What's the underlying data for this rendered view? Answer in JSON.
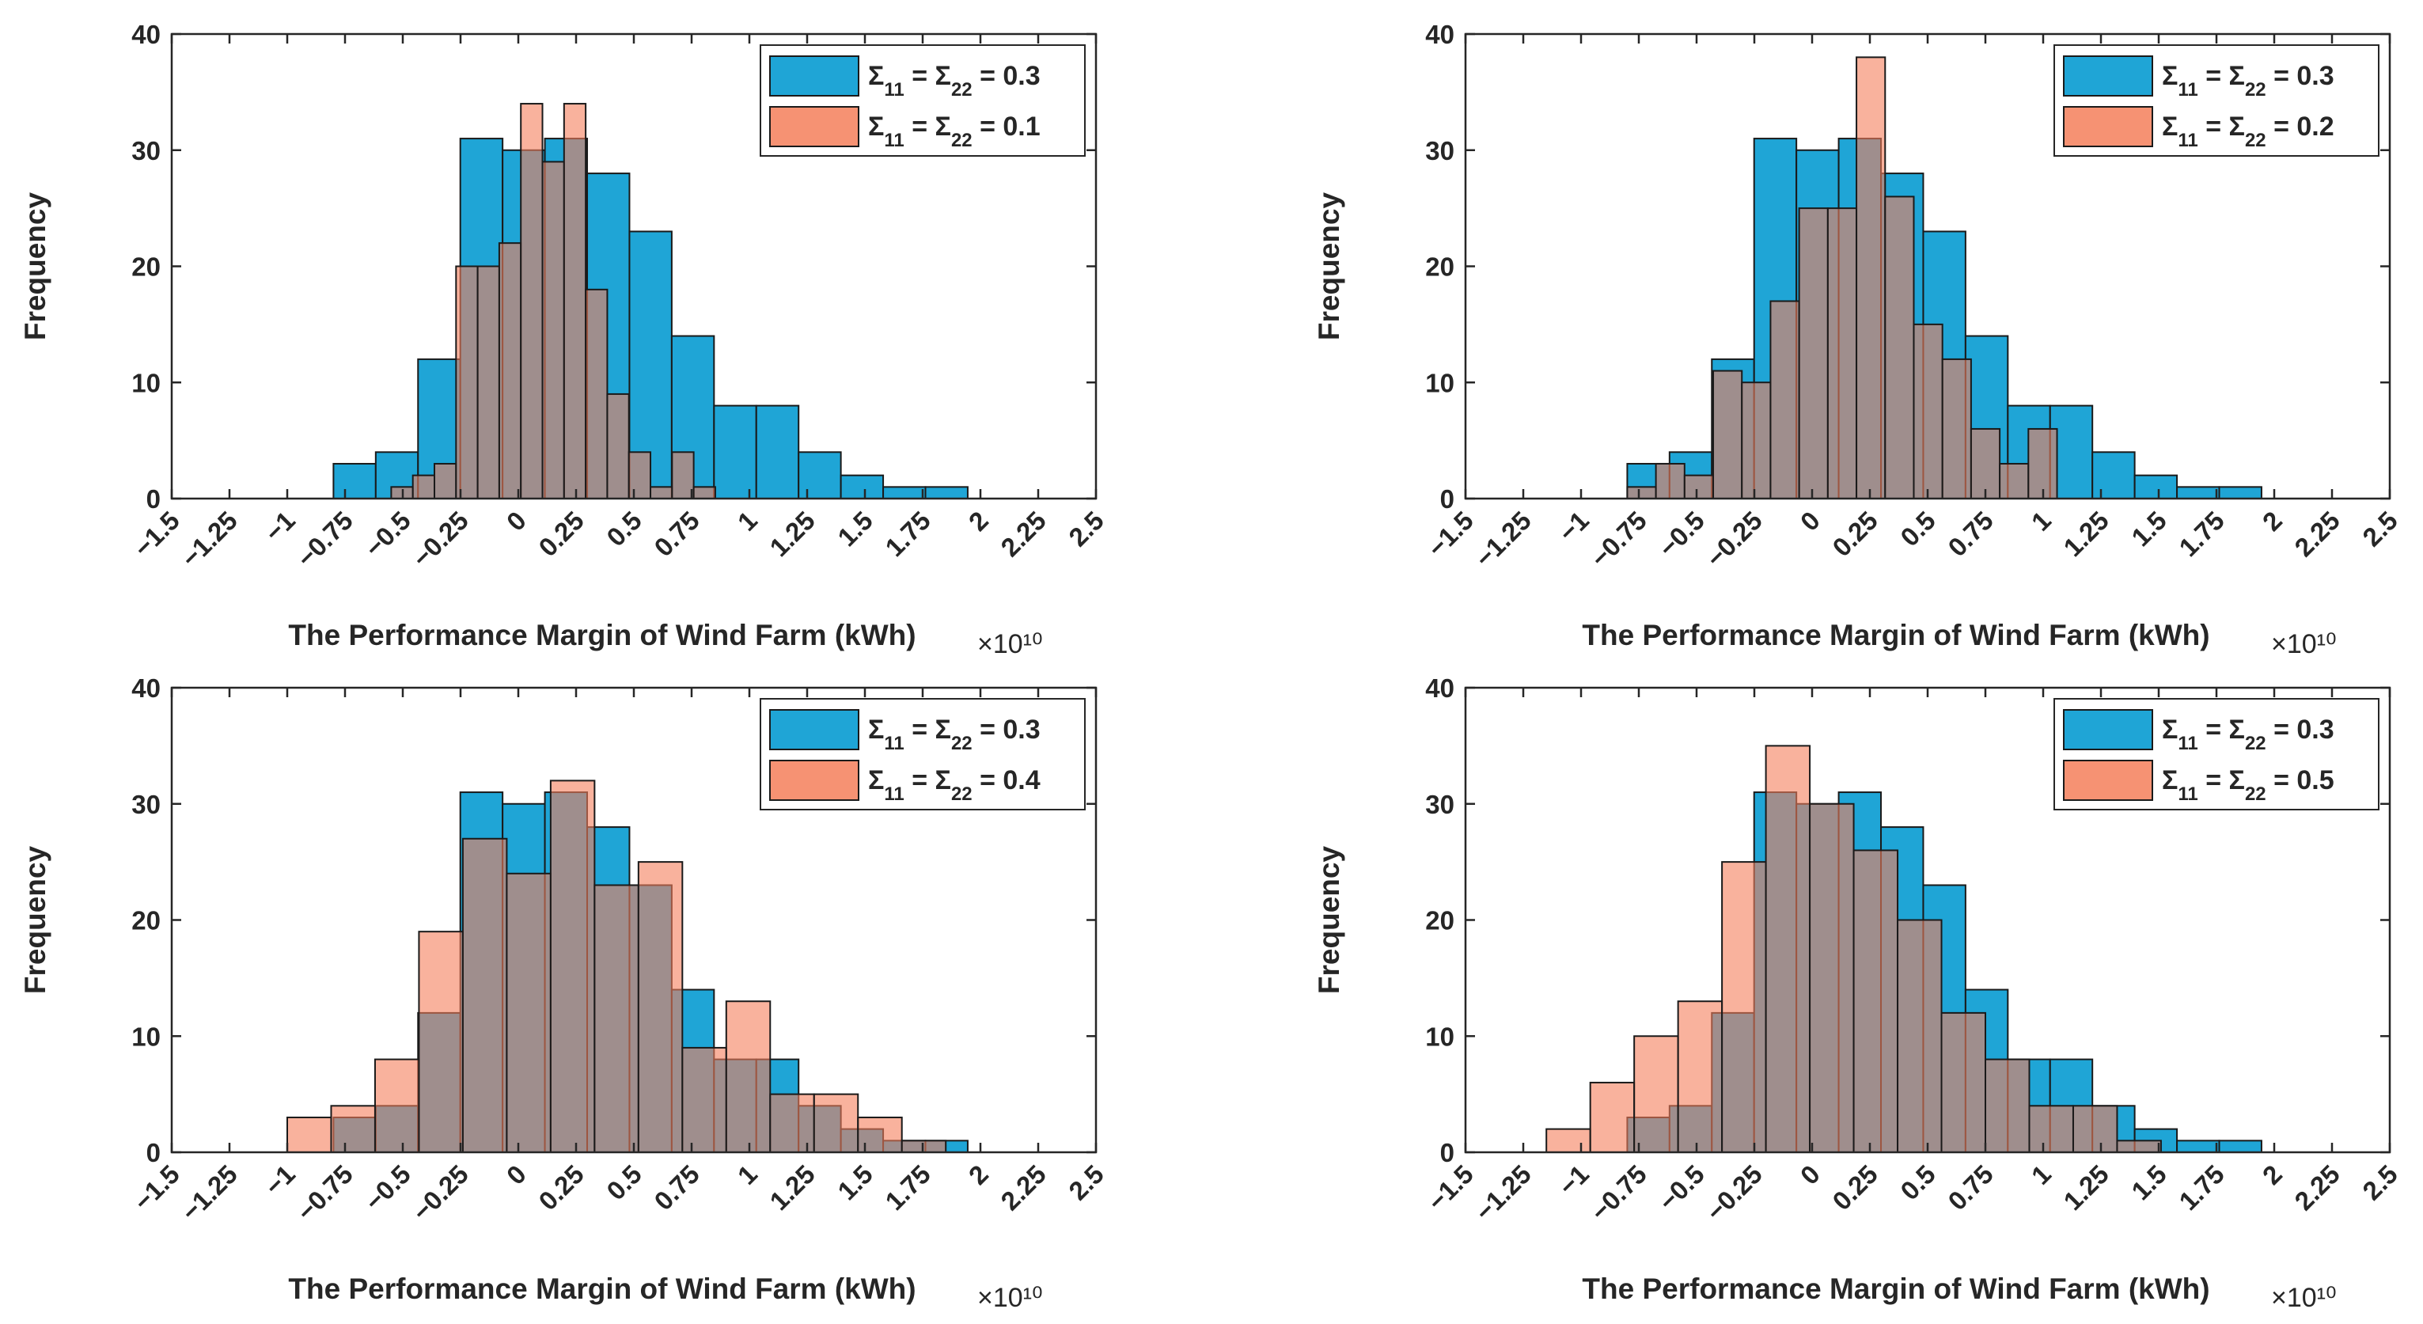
{
  "chart_data": [
    {
      "type": "bar",
      "xlabel": "The Performance Margin of Wind Farm (kWh)",
      "ylabel": "Frequency",
      "x_exponent": "×10¹⁰",
      "xlim": [
        -1.5,
        2.5
      ],
      "ylim": [
        0,
        40
      ],
      "xticks": [
        "−1.5",
        "−1.25",
        "−1",
        "−0.75",
        "−0.5",
        "−0.25",
        "0",
        "0.25",
        "0.5",
        "0.75",
        "1",
        "1.25",
        "1.5",
        "1.75",
        "2",
        "2.25",
        "2.5"
      ],
      "yticks": [
        "0",
        "10",
        "20",
        "30",
        "40"
      ],
      "legend_position": "top-right",
      "series": [
        {
          "name_parts": {
            "sym": "Σ",
            "sub1": "11",
            "eq": " = ",
            "sub2": "22",
            "val": " = 0.3"
          },
          "color": "#1FA5D6",
          "bin_start": -0.8,
          "bin_width": 0.183,
          "values": [
            3,
            4,
            12,
            31,
            30,
            31,
            28,
            23,
            14,
            8,
            8,
            4,
            2,
            1,
            1
          ]
        },
        {
          "name_parts": {
            "sym": "Σ",
            "sub1": "11",
            "eq": " = ",
            "sub2": "22",
            "val": " = 0.1"
          },
          "color": "#F57F5B",
          "bin_start": -0.55,
          "bin_width": 0.0935,
          "values": [
            1,
            2,
            3,
            20,
            20,
            22,
            34,
            29,
            34,
            18,
            9,
            4,
            1,
            4,
            1
          ]
        }
      ]
    },
    {
      "type": "bar",
      "xlabel": "The Performance Margin of Wind Farm (kWh)",
      "ylabel": "Frequency",
      "x_exponent": "×10¹⁰",
      "xlim": [
        -1.5,
        2.5
      ],
      "ylim": [
        0,
        40
      ],
      "xticks": [
        "−1.5",
        "−1.25",
        "−1",
        "−0.75",
        "−0.5",
        "−0.25",
        "0",
        "0.25",
        "0.5",
        "0.75",
        "1",
        "1.25",
        "1.5",
        "1.75",
        "2",
        "2.25",
        "2.5"
      ],
      "yticks": [
        "0",
        "10",
        "20",
        "30",
        "40"
      ],
      "legend_position": "top-right",
      "series": [
        {
          "name_parts": {
            "sym": "Σ",
            "sub1": "11",
            "eq": " = ",
            "sub2": "22",
            "val": " = 0.3"
          },
          "color": "#1FA5D6",
          "bin_start": -0.8,
          "bin_width": 0.183,
          "values": [
            3,
            4,
            12,
            31,
            30,
            31,
            28,
            23,
            14,
            8,
            8,
            4,
            2,
            1,
            1
          ]
        },
        {
          "name_parts": {
            "sym": "Σ",
            "sub1": "11",
            "eq": " = ",
            "sub2": "22",
            "val": " = 0.2"
          },
          "color": "#F57F5B",
          "bin_start": -0.8,
          "bin_width": 0.124,
          "values": [
            1,
            3,
            2,
            11,
            10,
            17,
            25,
            25,
            38,
            26,
            15,
            12,
            6,
            3,
            6
          ]
        }
      ]
    },
    {
      "type": "bar",
      "xlabel": "The Performance Margin of Wind Farm (kWh)",
      "ylabel": "Frequency",
      "x_exponent": "×10¹⁰",
      "xlim": [
        -1.5,
        2.5
      ],
      "ylim": [
        0,
        40
      ],
      "xticks": [
        "−1.5",
        "−1.25",
        "−1",
        "−0.75",
        "−0.5",
        "−0.25",
        "0",
        "0.25",
        "0.5",
        "0.75",
        "1",
        "1.25",
        "1.5",
        "1.75",
        "2",
        "2.25",
        "2.5"
      ],
      "yticks": [
        "0",
        "10",
        "20",
        "30",
        "40"
      ],
      "legend_position": "top-right",
      "series": [
        {
          "name_parts": {
            "sym": "Σ",
            "sub1": "11",
            "eq": " = ",
            "sub2": "22",
            "val": " = 0.3"
          },
          "color": "#1FA5D6",
          "bin_start": -0.8,
          "bin_width": 0.183,
          "values": [
            3,
            4,
            12,
            31,
            30,
            31,
            28,
            23,
            14,
            8,
            8,
            4,
            2,
            1,
            1
          ]
        },
        {
          "name_parts": {
            "sym": "Σ",
            "sub1": "11",
            "eq": " = ",
            "sub2": "22",
            "val": " = 0.4"
          },
          "color": "#F57F5B",
          "bin_start": -1.0,
          "bin_width": 0.19,
          "values": [
            3,
            4,
            8,
            19,
            27,
            24,
            32,
            23,
            25,
            9,
            13,
            5,
            5,
            3,
            1
          ]
        }
      ]
    },
    {
      "type": "bar",
      "xlabel": "The Performance Margin of Wind Farm (kWh)",
      "ylabel": "Frequency",
      "x_exponent": "×10¹⁰",
      "xlim": [
        -1.5,
        2.5
      ],
      "ylim": [
        0,
        40
      ],
      "xticks": [
        "−1.5",
        "−1.25",
        "−1",
        "−0.75",
        "−0.5",
        "−0.25",
        "0",
        "0.25",
        "0.5",
        "0.75",
        "1",
        "1.25",
        "1.5",
        "1.75",
        "2",
        "2.25",
        "2.5"
      ],
      "yticks": [
        "0",
        "10",
        "20",
        "30",
        "40"
      ],
      "legend_position": "top-right",
      "series": [
        {
          "name_parts": {
            "sym": "Σ",
            "sub1": "11",
            "eq": " = ",
            "sub2": "22",
            "val": " = 0.3"
          },
          "color": "#1FA5D6",
          "bin_start": -0.8,
          "bin_width": 0.183,
          "values": [
            3,
            4,
            12,
            31,
            30,
            31,
            28,
            23,
            14,
            8,
            8,
            4,
            2,
            1,
            1
          ]
        },
        {
          "name_parts": {
            "sym": "Σ",
            "sub1": "11",
            "eq": " = ",
            "sub2": "22",
            "val": " = 0.5"
          },
          "color": "#F57F5B",
          "bin_start": -1.15,
          "bin_width": 0.19,
          "values": [
            2,
            6,
            10,
            13,
            25,
            35,
            30,
            26,
            20,
            12,
            8,
            4,
            4,
            1
          ]
        }
      ]
    }
  ]
}
